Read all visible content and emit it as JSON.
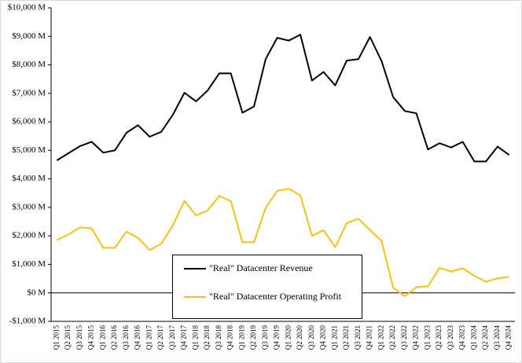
{
  "chart_data": {
    "type": "line",
    "categories": [
      "Q1 2015",
      "Q2 2015",
      "Q3 2015",
      "Q4 2015",
      "Q1 2016",
      "Q2 2016",
      "Q3 2016",
      "Q4 2016",
      "Q1 2017",
      "Q2 2017",
      "Q3 2017",
      "Q4 2017",
      "Q1 2018",
      "Q2 2018",
      "Q3 2018",
      "Q4 2018",
      "Q1 2019",
      "Q2 2019",
      "Q3 2019",
      "Q4 2019",
      "Q1 2020",
      "Q2 2020",
      "Q3 2020",
      "Q4 2020",
      "Q1 2021",
      "Q2 2021",
      "Q3 2021",
      "Q4 2021",
      "Q1 2022",
      "Q2 2022",
      "Q3 2022",
      "Q4 2022",
      "Q1 2023",
      "Q2 2023",
      "Q3 2023",
      "Q4 2023",
      "Q1 2024",
      "Q2 2024",
      "Q3 2024",
      "Q4 2024"
    ],
    "series": [
      {
        "name": "\"Real\" Datacenter Revenue",
        "color": "#000000",
        "values": [
          4650,
          4900,
          5150,
          5300,
          4920,
          5000,
          5620,
          5880,
          5480,
          5650,
          6250,
          7020,
          6720,
          7100,
          7700,
          7700,
          6320,
          6540,
          8200,
          8950,
          8850,
          9060,
          7450,
          7750,
          7280,
          8150,
          8200,
          8980,
          8130,
          6870,
          6380,
          6300,
          5030,
          5250,
          5100,
          5300,
          4610,
          4610,
          5130,
          4840
        ]
      },
      {
        "name": "\"Real\" Datacenter Operating Profit",
        "color": "#f2c318",
        "values": [
          1850,
          2050,
          2300,
          2260,
          1580,
          1580,
          2150,
          1930,
          1500,
          1720,
          2370,
          3230,
          2720,
          2890,
          3400,
          3220,
          1780,
          1780,
          2980,
          3580,
          3650,
          3420,
          2000,
          2200,
          1600,
          2450,
          2600,
          2200,
          1820,
          180,
          -120,
          200,
          230,
          880,
          750,
          860,
          600,
          390,
          510,
          560
        ]
      }
    ],
    "ylim": [
      -1000,
      10000
    ],
    "yticks": [
      {
        "value": -1000,
        "label": "-$1,000 M"
      },
      {
        "value": 0,
        "label": "$0 M"
      },
      {
        "value": 1000,
        "label": "$1,000 M"
      },
      {
        "value": 2000,
        "label": "$2,000 M"
      },
      {
        "value": 3000,
        "label": "$3,000 M"
      },
      {
        "value": 4000,
        "label": "$4,000 M"
      },
      {
        "value": 5000,
        "label": "$5,000 M"
      },
      {
        "value": 6000,
        "label": "$6,000 M"
      },
      {
        "value": 7000,
        "label": "$7,000 M"
      },
      {
        "value": 8000,
        "label": "$8,000 M"
      },
      {
        "value": 9000,
        "label": "$9,000 M"
      },
      {
        "value": 10000,
        "label": "$10,000 M"
      }
    ],
    "grid": false
  }
}
